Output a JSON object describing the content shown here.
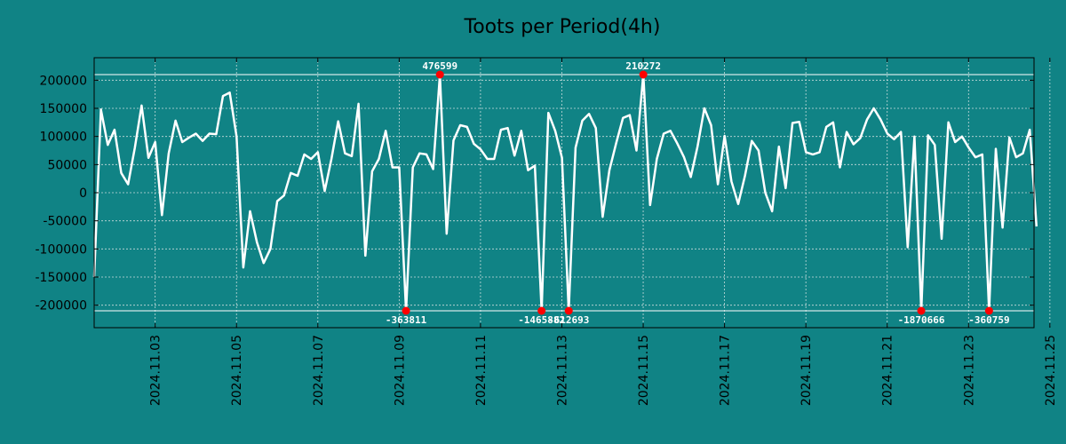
{
  "chart_data": {
    "type": "line",
    "title": "Toots per Period(4h)",
    "xlabel": "",
    "ylabel": "",
    "x_start_day": 0.5,
    "x_range_days": [
      0.5,
      23.61
    ],
    "ylim": [
      -240000,
      240000
    ],
    "y_ticks": [
      200000,
      150000,
      100000,
      50000,
      0,
      -50000,
      -100000,
      -150000,
      -200000
    ],
    "y_tick_labels": [
      "200000",
      "150000",
      "100000",
      "50000",
      "0",
      "-50000",
      "-100000",
      "-150000",
      "-200000"
    ],
    "x_ticks": [
      {
        "day": 2,
        "label": "2024.11.03"
      },
      {
        "day": 4,
        "label": "2024.11.05"
      },
      {
        "day": 6,
        "label": "2024.11.07"
      },
      {
        "day": 8,
        "label": "2024.11.09"
      },
      {
        "day": 10,
        "label": "2024.11.11"
      },
      {
        "day": 12,
        "label": "2024.11.13"
      },
      {
        "day": 14,
        "label": "2024.11.15"
      },
      {
        "day": 16,
        "label": "2024.11.17"
      },
      {
        "day": 18,
        "label": "2024.11.19"
      },
      {
        "day": 20,
        "label": "2024.11.21"
      },
      {
        "day": 22,
        "label": "2024.11.23"
      },
      {
        "day": 24,
        "label": "2024.11.25"
      }
    ],
    "clip_max": 210000,
    "clip_min": -210000,
    "grid": true,
    "period_days": 0.1667,
    "series": [
      {
        "name": "Toots",
        "color": "#ffffff",
        "values": [
          -150000,
          148000,
          85000,
          112000,
          35000,
          15000,
          80000,
          155000,
          62000,
          90000,
          -40000,
          70000,
          128000,
          90000,
          98000,
          105000,
          92000,
          105000,
          104000,
          172000,
          178000,
          100000,
          -133000,
          -33000,
          -88000,
          -125000,
          -100000,
          -15000,
          -5000,
          35000,
          30000,
          68000,
          60000,
          72000,
          3000,
          60000,
          127000,
          70000,
          65000,
          158000,
          -112000,
          38000,
          60000,
          110000,
          45000,
          45000,
          -210000,
          45000,
          70000,
          68000,
          42000,
          210000,
          -73000,
          93000,
          120000,
          117000,
          87000,
          77000,
          60000,
          60000,
          112000,
          115000,
          66000,
          110000,
          40000,
          48000,
          -210000,
          142000,
          110000,
          62000,
          -210000,
          80000,
          128000,
          140000,
          115000,
          -43000,
          40000,
          88000,
          133000,
          138000,
          75000,
          210000,
          -22000,
          60000,
          105000,
          110000,
          88000,
          63000,
          28000,
          82000,
          150000,
          120000,
          15000,
          101000,
          20000,
          -20000,
          30000,
          92000,
          75000,
          0,
          -33000,
          82000,
          8000,
          124000,
          126000,
          72000,
          68000,
          72000,
          117000,
          125000,
          45000,
          108000,
          86000,
          97000,
          130000,
          150000,
          130000,
          105000,
          95000,
          108000,
          -97000,
          100000,
          -210000,
          102000,
          85000,
          -82000,
          125000,
          90000,
          100000,
          80000,
          63000,
          68000,
          -210000,
          78000,
          -62000,
          98000,
          63000,
          70000,
          112000,
          -60000
        ]
      }
    ],
    "annotations": [
      {
        "index": 46,
        "value": -210000,
        "label": "-363811",
        "side": "below"
      },
      {
        "index": 51,
        "value": 210000,
        "label": "476599",
        "side": "above"
      },
      {
        "index": 66,
        "value": -210000,
        "label": "-1465882",
        "side": "below"
      },
      {
        "index": 70,
        "value": -210000,
        "label": "-612693",
        "side": "below"
      },
      {
        "index": 81,
        "value": 210000,
        "label": "210272",
        "side": "above"
      },
      {
        "index": 122,
        "value": -210000,
        "label": "-1870666",
        "side": "below"
      },
      {
        "index": 132,
        "value": -210000,
        "label": "-360759",
        "side": "below"
      }
    ],
    "colors": {
      "background": "#108385",
      "line": "#ffffff",
      "marker": "#ff0000",
      "grid": "#c8dcdc",
      "axis": "#000000"
    }
  }
}
